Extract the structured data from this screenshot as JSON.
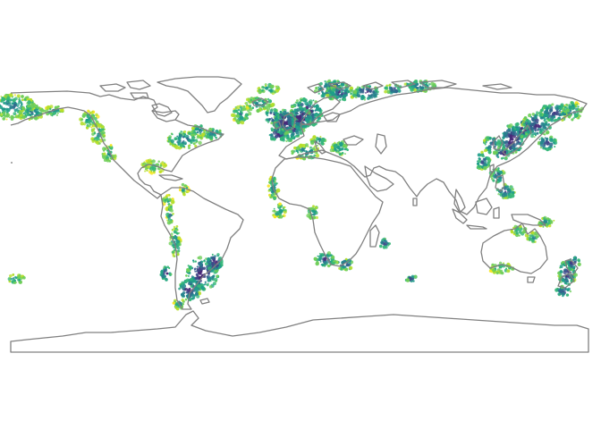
{
  "map": {
    "projection": "equirectangular",
    "layers": [
      "coastline",
      "density-hotspots"
    ],
    "colors": {
      "background": "#ffffff",
      "coastline": "#808080",
      "palette": [
        "#f6e51f",
        "#b5de2b",
        "#6ece58",
        "#35b779",
        "#1f9e89",
        "#26828e",
        "#31688e",
        "#3e4989",
        "#482878"
      ]
    },
    "regions": [
      {
        "name": "alaska-coast",
        "level": 0.55
      },
      {
        "name": "bering-sea",
        "level": 0.5
      },
      {
        "name": "us-west-coast",
        "level": 0.45
      },
      {
        "name": "gulf-of-maine",
        "level": 0.6
      },
      {
        "name": "gulf-of-mexico",
        "level": 0.35
      },
      {
        "name": "iceland",
        "level": 0.5
      },
      {
        "name": "norway-coast",
        "level": 0.85
      },
      {
        "name": "north-sea",
        "level": 0.95
      },
      {
        "name": "uk-ireland",
        "level": 0.9
      },
      {
        "name": "barents-sea",
        "level": 0.7
      },
      {
        "name": "mediterranean",
        "level": 0.55
      },
      {
        "name": "west-africa",
        "level": 0.5
      },
      {
        "name": "south-africa",
        "level": 0.75
      },
      {
        "name": "japan",
        "level": 0.95
      },
      {
        "name": "korea-china",
        "level": 0.7
      },
      {
        "name": "kamchatka",
        "level": 0.8
      },
      {
        "name": "patagonia-shelf",
        "level": 0.9
      },
      {
        "name": "chile-coast",
        "level": 0.55
      },
      {
        "name": "southern-australia",
        "level": 0.45
      },
      {
        "name": "new-zealand",
        "level": 0.8
      }
    ]
  }
}
